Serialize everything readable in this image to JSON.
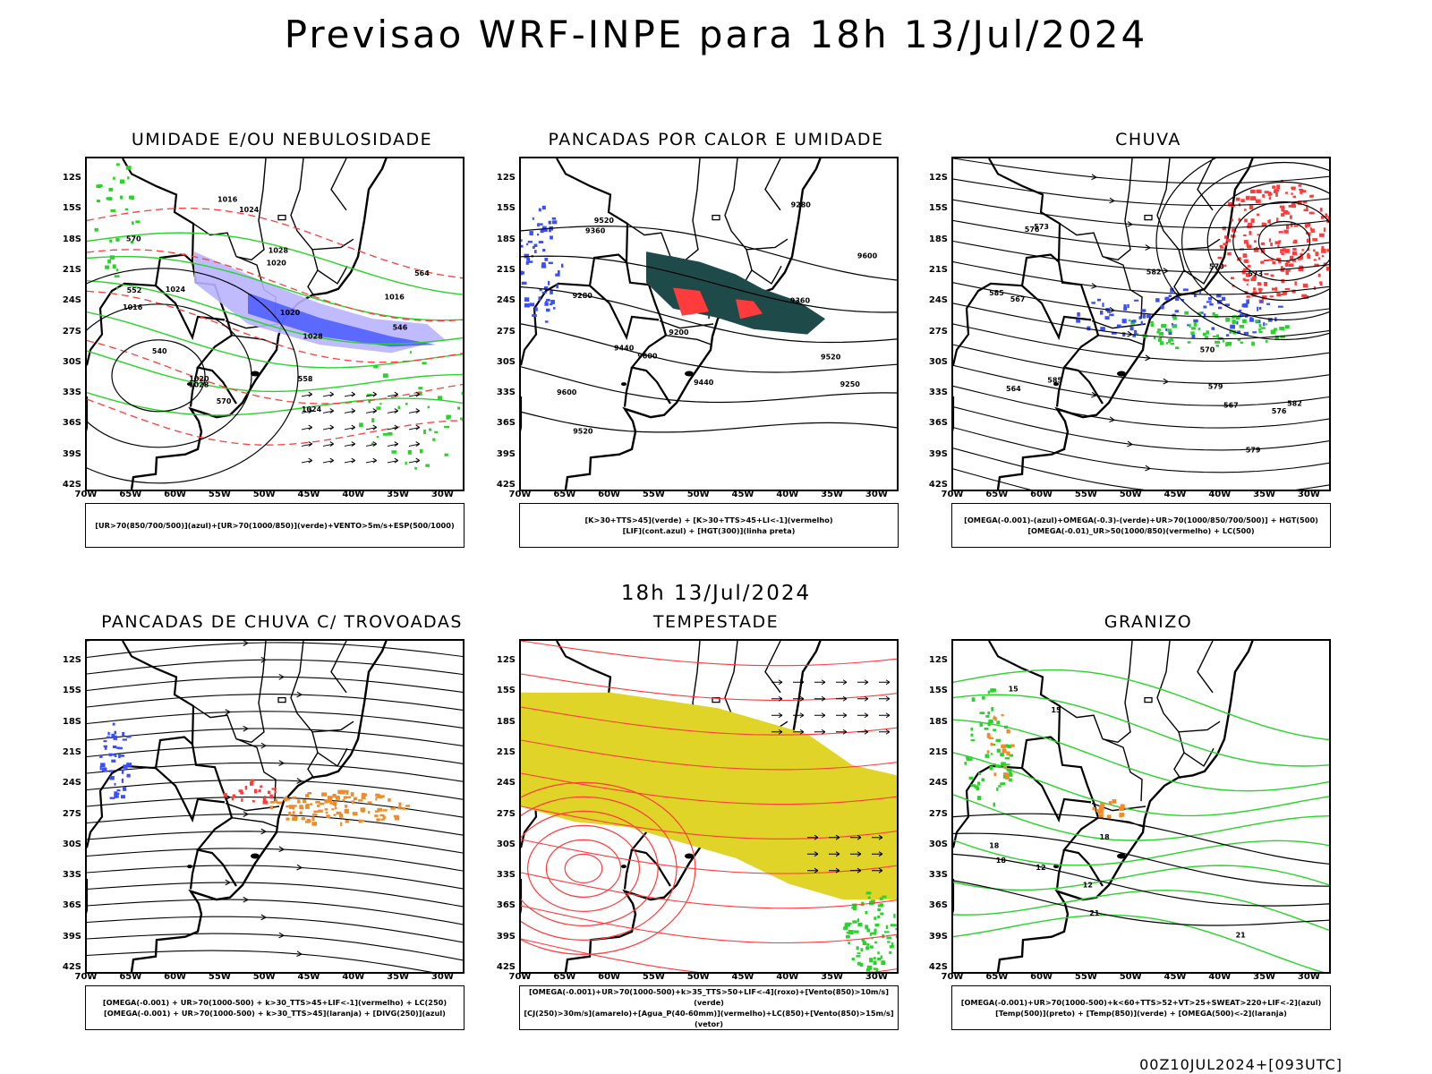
{
  "page": {
    "main_title": "Previsao WRF-INPE  para 18h 13/Jul/2024",
    "mid_title": "18h 13/Jul/2024",
    "footer_stamp": "00Z10JUL2024+[093UTC]"
  },
  "axes": {
    "lat_labels": [
      "12S",
      "15S",
      "18S",
      "21S",
      "24S",
      "27S",
      "30S",
      "33S",
      "36S",
      "39S",
      "42S"
    ],
    "lon_labels": [
      "70W",
      "65W",
      "60W",
      "55W",
      "50W",
      "45W",
      "40W",
      "35W",
      "30W"
    ]
  },
  "colors": {
    "red": "#ff3b3b",
    "green": "#28d428",
    "blue": "#3a4dff",
    "lavender": "#b9b2ff",
    "teal": "#1e4a4a",
    "yellow": "#e0d429",
    "orange": "#f08c28",
    "black": "#000000"
  },
  "panels": [
    {
      "title": "UMIDADE E/OU NEBULOSIDADE",
      "legend": [
        "[UR>70(850/700/500)](azul)+[UR>70(1000/850)](verde)+VENTO>5m/s+ESP(500/1000)"
      ],
      "contour_labels": [
        "1016",
        "1016",
        "1016",
        "1020",
        "1020",
        "1020",
        "1024",
        "1024",
        "1024",
        "1028",
        "1028",
        "1028",
        "570",
        "570",
        "558",
        "552",
        "546",
        "540",
        "564"
      ]
    },
    {
      "title": "PANCADAS POR CALOR E UMIDADE",
      "legend": [
        "[K>30+TTS>45](verde) + [K>30+TTS>45+LI<-1](vermelho)",
        "[LIF](cont.azul) + [HGT(300)](linha preta)"
      ],
      "contour_labels": [
        "9600",
        "9520",
        "9440",
        "9600",
        "9600",
        "9520",
        "9440",
        "9520",
        "9360",
        "9280",
        "9360",
        "9200",
        "9280",
        "9250"
      ]
    },
    {
      "title": "CHUVA",
      "legend": [
        "[OMEGA(-0.001)-(azul)+OMEGA(-0.3)-(verde)+UR>70(1000/850/700/500)] + HGT(500)",
        "[OMEGA(-0.01)_UR>50(1000/850)(vermelho) + LC(500)"
      ],
      "contour_labels": [
        "585",
        "582",
        "579",
        "576",
        "573",
        "570",
        "567",
        "585",
        "582",
        "579",
        "576",
        "573",
        "570",
        "567",
        "564"
      ]
    },
    {
      "title": "PANCADAS DE CHUVA C/ TROVOADAS",
      "legend": [
        "[OMEGA(-0.001) + UR>70(1000-500) + k>30_TTS>45+LIF<-1](vermelho) + LC(250)",
        "[OMEGA(-0.001) + UR>70(1000-500) + k>30_TTS>45](laranja) + [DIVG(250)](azul)"
      ],
      "contour_labels": []
    },
    {
      "title": "TEMPESTADE",
      "legend": [
        "[OMEGA(-0.001)+UR>70(1000-500)+k>35_TTS>50+LIF<-4](roxo)+[Vento(850)>10m/s](verde)",
        "[CJ(250)>30m/s](amarelo)+[Agua_P(40-60mm)](vermelho)+LC(850)+[Vento(850)>15m/s](vetor)"
      ],
      "contour_labels": []
    },
    {
      "title": "GRANIZO",
      "legend": [
        "[OMEGA(-0.001)+UR>70(1000-500)+k<60+TTS>52+VT>25+SWEAT>220+LIF<-2](azul)",
        "[Temp(500)](preto) + [Temp(850)](verde) + [OMEGA(500)<-2](laranja)"
      ],
      "contour_labels": [
        "18",
        "15",
        "12",
        "21",
        "18",
        "15",
        "12",
        "21",
        "18"
      ]
    }
  ]
}
